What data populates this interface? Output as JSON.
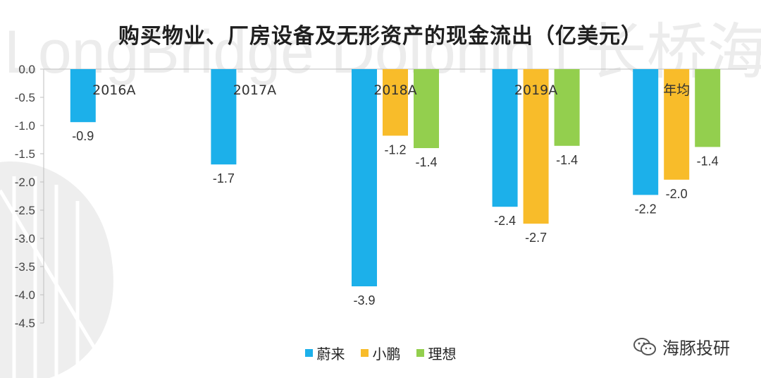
{
  "watermark": {
    "text": "LongBridge Dolphin | 长桥海豚投研"
  },
  "brand": {
    "label": "海豚投研",
    "icon": "wechat-icon"
  },
  "chart_data": {
    "type": "bar",
    "title": "购买物业、厂房设备及无形资产的现金流出（亿美元）",
    "xlabel": "",
    "ylabel": "",
    "categories": [
      "2016A",
      "2017A",
      "2018A",
      "2019A",
      "年均"
    ],
    "series": [
      {
        "name": "蔚来",
        "color": "#1cb0ea",
        "values": [
          -0.94,
          -1.69,
          -3.85,
          -2.44,
          -2.23
        ],
        "labels": [
          "-0.9",
          "-1.7",
          "-3.9",
          "-2.4",
          "-2.2"
        ]
      },
      {
        "name": "小鹏",
        "color": "#f8bc2a",
        "values": [
          null,
          null,
          -1.18,
          -2.74,
          -1.96
        ],
        "labels": [
          "",
          "",
          "-1.2",
          "-2.7",
          "-2.0"
        ]
      },
      {
        "name": "理想",
        "color": "#93cf4e",
        "values": [
          null,
          null,
          -1.4,
          -1.36,
          -1.38
        ],
        "labels": [
          "",
          "",
          "-1.4",
          "-1.4",
          "-1.4"
        ]
      }
    ],
    "ylim": [
      -4.5,
      0
    ],
    "yticks": [
      "0.0",
      "-0.5",
      "-1.0",
      "-1.5",
      "-2.0",
      "-2.5",
      "-3.0",
      "-3.5",
      "-4.0",
      "-4.5"
    ],
    "grid": false,
    "legend_position": "bottom"
  }
}
